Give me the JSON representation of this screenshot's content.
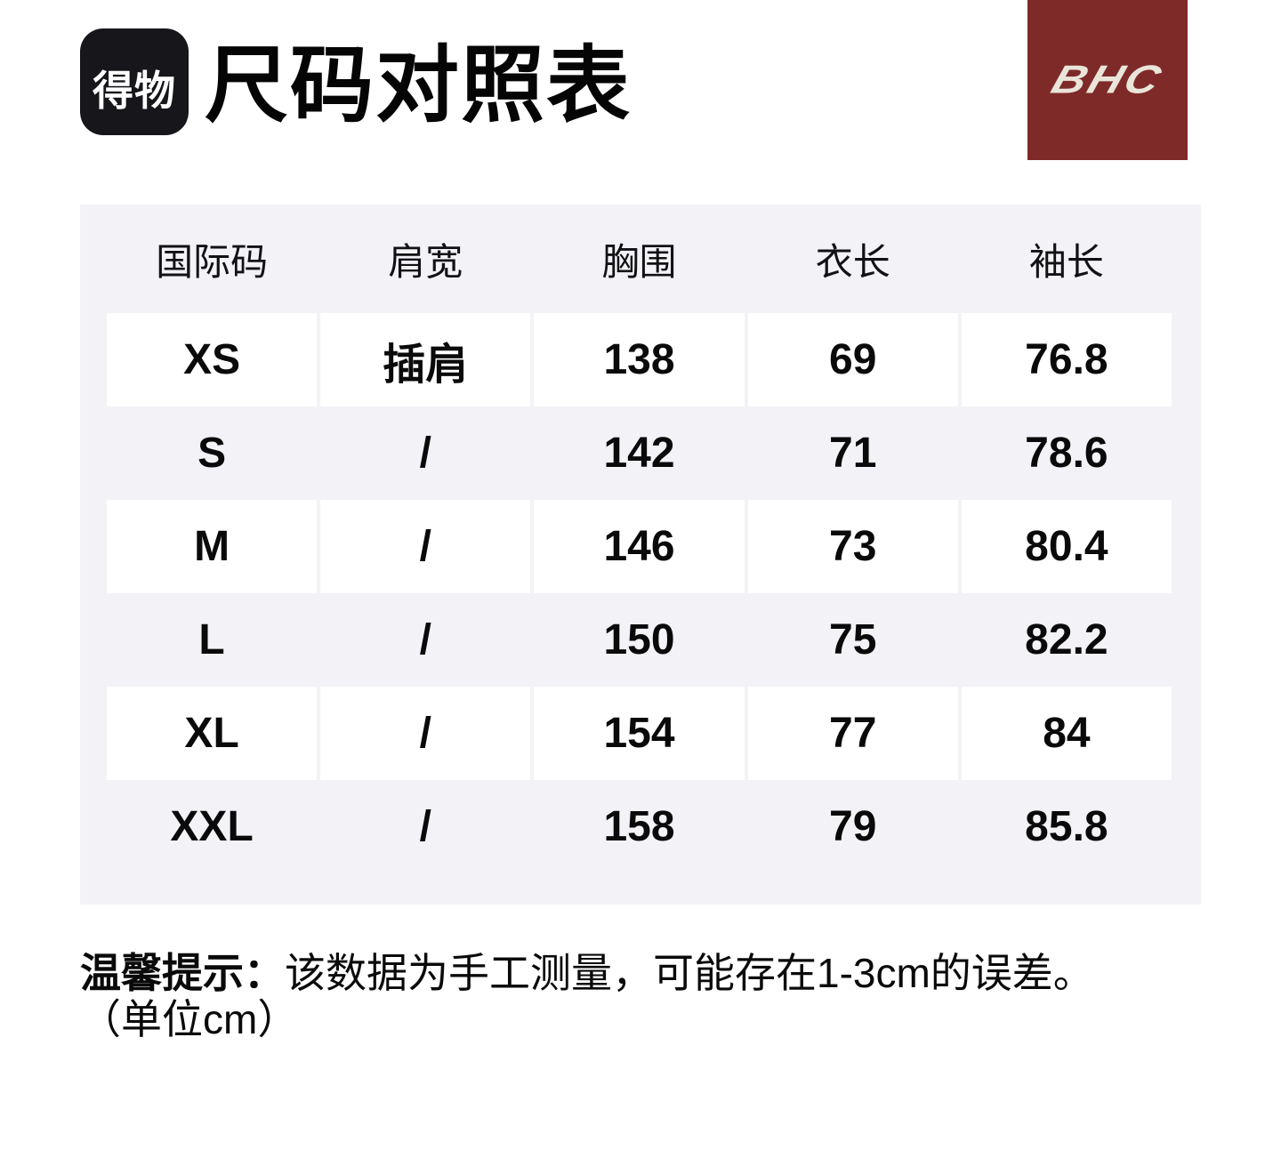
{
  "header": {
    "app_logo_text": "得物",
    "page_title": "尺码对照表",
    "brand_logo_text": "BHC"
  },
  "size_table": {
    "columns": [
      "国际码",
      "肩宽",
      "胸围",
      "衣长",
      "袖长"
    ],
    "rows": [
      [
        "XS",
        "插肩",
        "138",
        "69",
        "76.8"
      ],
      [
        "S",
        "/",
        "142",
        "71",
        "78.6"
      ],
      [
        "M",
        "/",
        "146",
        "73",
        "80.4"
      ],
      [
        "L",
        "/",
        "150",
        "75",
        "82.2"
      ],
      [
        "XL",
        "/",
        "154",
        "77",
        "84"
      ],
      [
        "XXL",
        "/",
        "158",
        "79",
        "85.8"
      ]
    ]
  },
  "footnote": {
    "label": "温馨提示：",
    "text": "该数据为手工测量，可能存在1-3cm的误差。",
    "unit_note": "（单位cm）"
  },
  "colors": {
    "dewu-black": "#17171b",
    "brand-maroon": "#7e2a29",
    "brand-cream": "#e9e5d9",
    "table-gray": "#f3f3f7"
  }
}
